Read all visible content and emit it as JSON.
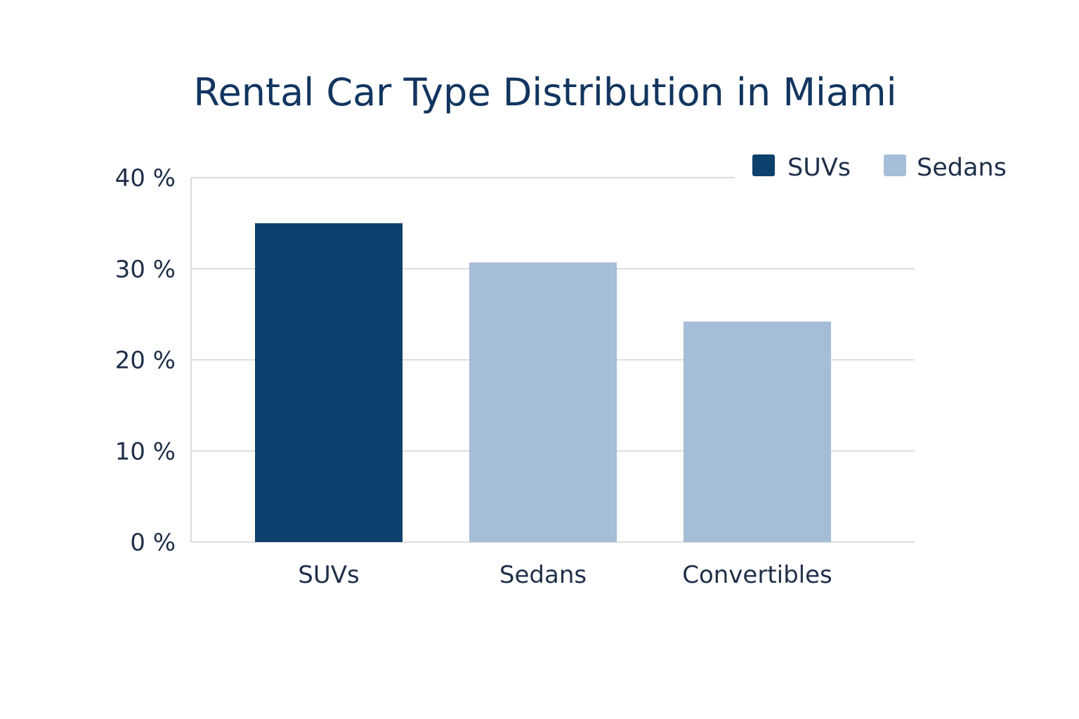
{
  "chart_data": {
    "type": "bar",
    "title": "Rental Car Type Distribution in Miami",
    "categories": [
      "SUVs",
      "Sedans",
      "Convertibles"
    ],
    "values": [
      35,
      30.7,
      24.2
    ],
    "unit": "%",
    "ylim": [
      0,
      40
    ],
    "yticks": [
      0,
      10,
      20,
      30,
      40
    ],
    "ytick_labels": [
      "0 %",
      "10 %",
      "20 %",
      "30 %",
      "40 %"
    ],
    "grid": true,
    "legend": {
      "placement": "top-right",
      "entries": [
        {
          "label": "SUVs",
          "color": "#0e406d"
        },
        {
          "label": "Sedans",
          "color": "#a6bdd7"
        }
      ]
    },
    "bar_colors": [
      "#0e406d",
      "#a6bdd7",
      "#a6bdd7"
    ],
    "gridline_color": "#d2d2d2"
  }
}
